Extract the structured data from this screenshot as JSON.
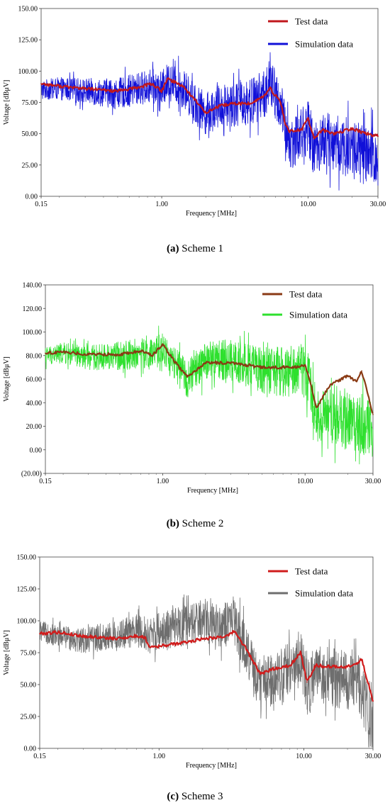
{
  "chart_data": [
    {
      "type": "line",
      "caption_letter": "(a)",
      "caption_text": "Scheme 1",
      "xlabel": "Frequency [MHz]",
      "ylabel": "Voltage [dBμV]",
      "x_scale": "log",
      "xlim": [
        0.15,
        30.0
      ],
      "ylim": [
        0.0,
        150.0
      ],
      "xticks": [
        "0.15",
        "1.00",
        "10.00",
        "30.00"
      ],
      "yticks": [
        "0.00",
        "25.00",
        "50.00",
        "75.00",
        "100.00",
        "125.00",
        "150.00"
      ],
      "legend_position": "top-right",
      "series": [
        {
          "name": "Test data",
          "color": "#c0171c",
          "x": [
            0.15,
            0.2,
            0.3,
            0.5,
            0.7,
            0.85,
            1.0,
            1.1,
            1.4,
            1.8,
            2.0,
            2.5,
            3.0,
            4.0,
            5.0,
            5.5,
            6.5,
            7.0,
            7.5,
            9.0,
            10.0,
            11.0,
            12.5,
            15.0,
            20.0,
            25.0,
            30.0
          ],
          "y": [
            90,
            88,
            86,
            84,
            87,
            90,
            84,
            94,
            88,
            73,
            67,
            72,
            74,
            74,
            80,
            86,
            75,
            57,
            52,
            53,
            62,
            46,
            53,
            50,
            54,
            50,
            48
          ]
        },
        {
          "name": "Simulation data",
          "color": "#1010d8",
          "x": [
            0.15,
            0.2,
            0.3,
            0.5,
            0.7,
            0.85,
            1.0,
            1.1,
            1.4,
            1.8,
            2.0,
            2.5,
            3.0,
            4.0,
            5.0,
            5.5,
            6.5,
            7.0,
            7.5,
            9.0,
            10.0,
            11.0,
            12.5,
            15.0,
            20.0,
            25.0,
            30.0
          ],
          "y": [
            85,
            86,
            84,
            82,
            86,
            88,
            85,
            92,
            86,
            71,
            66,
            72,
            74,
            75,
            82,
            90,
            72,
            52,
            42,
            50,
            55,
            38,
            45,
            42,
            38,
            32,
            30
          ]
        }
      ]
    },
    {
      "type": "line",
      "caption_letter": "(b)",
      "caption_text": "Scheme 2",
      "xlabel": "Frequency [MHz]",
      "ylabel": "Voltage [dBμV]",
      "x_scale": "log",
      "xlim": [
        0.15,
        30.0
      ],
      "ylim": [
        -20.0,
        140.0
      ],
      "xticks": [
        "0.15",
        "1.00",
        "10.00",
        "30.00"
      ],
      "yticks": [
        "(20.00)",
        "0.00",
        "20.00",
        "40.00",
        "60.00",
        "80.00",
        "100.00",
        "120.00",
        "140.00"
      ],
      "legend_position": "top-right",
      "series": [
        {
          "name": "Test data",
          "color": "#8a3a14",
          "x": [
            0.15,
            0.2,
            0.3,
            0.5,
            0.7,
            0.85,
            1.0,
            1.1,
            1.3,
            1.5,
            2.0,
            3.0,
            5.0,
            7.0,
            9.0,
            10.0,
            11.0,
            12.0,
            15.0,
            18.0,
            20.0,
            23.0,
            25.0,
            30.0
          ],
          "y": [
            82,
            83,
            81,
            81,
            84,
            80,
            90,
            82,
            70,
            62,
            74,
            74,
            70,
            70,
            70,
            72,
            55,
            36,
            55,
            60,
            63,
            58,
            67,
            30
          ]
        },
        {
          "name": "Simulation data",
          "color": "#2ee02e",
          "x": [
            0.15,
            0.2,
            0.3,
            0.5,
            0.7,
            0.85,
            1.0,
            1.1,
            1.3,
            1.5,
            2.0,
            3.0,
            5.0,
            7.0,
            9.0,
            10.0,
            11.0,
            12.0,
            15.0,
            18.0,
            20.0,
            23.0,
            25.0,
            30.0
          ],
          "y": [
            80,
            82,
            78,
            80,
            82,
            80,
            86,
            78,
            68,
            60,
            76,
            76,
            68,
            66,
            68,
            70,
            50,
            30,
            28,
            26,
            24,
            24,
            22,
            18
          ]
        }
      ]
    },
    {
      "type": "line",
      "caption_letter": "(c)",
      "caption_text": "Scheme 3",
      "xlabel": "Frequency [MHz]",
      "ylabel": "Voltage [dBμV]",
      "x_scale": "log",
      "xlim": [
        0.15,
        30.0
      ],
      "ylim": [
        0.0,
        150.0
      ],
      "xticks": [
        "0.15",
        "1.00",
        "10.00",
        "30.00"
      ],
      "yticks": [
        "0.00",
        "25.00",
        "50.00",
        "75.00",
        "100.00",
        "125.00",
        "150.00"
      ],
      "legend_position": "top-right",
      "series": [
        {
          "name": "Test data",
          "color": "#d01c1c",
          "x": [
            0.15,
            0.2,
            0.3,
            0.5,
            0.7,
            0.8,
            0.85,
            1.0,
            1.5,
            2.0,
            3.0,
            3.3,
            4.0,
            5.0,
            6.0,
            8.0,
            9.5,
            10.5,
            12.0,
            15.0,
            20.0,
            23.0,
            25.0,
            28.0,
            30.0
          ],
          "y": [
            90,
            91,
            88,
            86,
            88,
            87,
            80,
            80,
            83,
            86,
            88,
            92,
            78,
            58,
            62,
            65,
            75,
            52,
            65,
            64,
            64,
            66,
            70,
            50,
            37
          ]
        },
        {
          "name": "Simulation data",
          "color": "#6e6e6e",
          "x": [
            0.15,
            0.2,
            0.3,
            0.5,
            0.7,
            0.8,
            0.85,
            1.0,
            1.5,
            2.0,
            3.0,
            3.3,
            4.0,
            5.0,
            6.0,
            8.0,
            9.5,
            10.5,
            12.0,
            15.0,
            20.0,
            23.0,
            25.0,
            28.0,
            30.0
          ],
          "y": [
            92,
            88,
            85,
            88,
            92,
            90,
            88,
            92,
            96,
            100,
            96,
            100,
            76,
            50,
            55,
            62,
            70,
            48,
            58,
            56,
            54,
            52,
            48,
            30,
            20
          ]
        }
      ]
    }
  ]
}
